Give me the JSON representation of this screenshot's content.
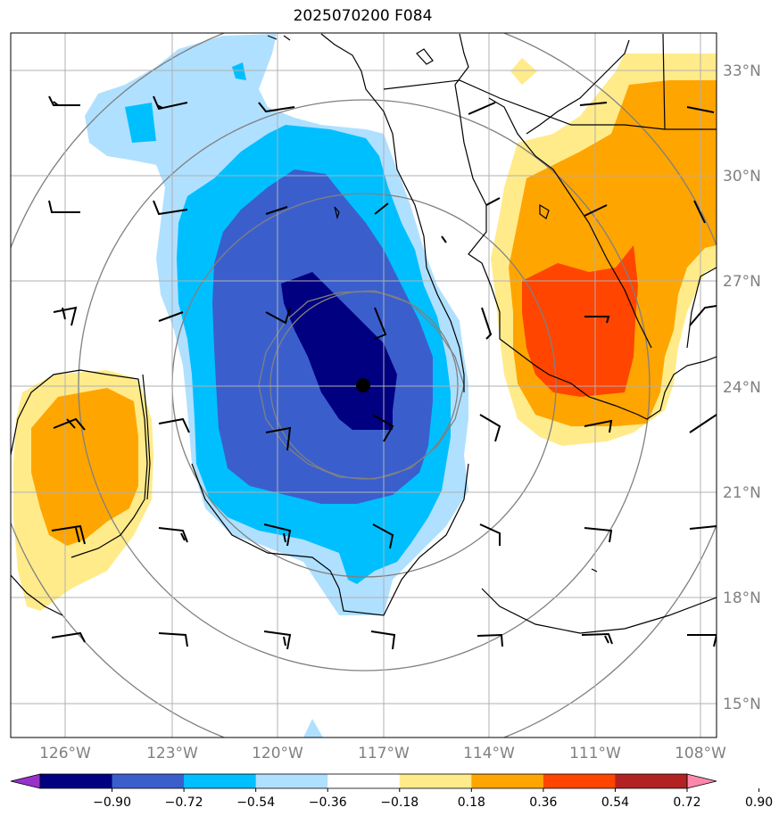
{
  "title": "2025070200 F084",
  "map": {
    "lon_range": [
      -128,
      -107.5
    ],
    "lat_range": [
      14,
      34
    ],
    "lat_ticks": [
      "33°N",
      "30°N",
      "27°N",
      "24°N",
      "21°N",
      "18°N",
      "15°N"
    ],
    "lon_ticks": [
      "126°W",
      "123°W",
      "120°W",
      "117°W",
      "114°W",
      "111°W",
      "108°W"
    ],
    "center_marker": {
      "lon": -117.6,
      "lat": 24.05
    },
    "range_rings": "concentric circles centered on storm",
    "gridlines": true,
    "coastlines": true,
    "wind_barbs": true
  },
  "colorbar": {
    "ticks": [
      "−0.90",
      "−0.72",
      "−0.54",
      "−0.36",
      "−0.18",
      "0.18",
      "0.36",
      "0.54",
      "0.72",
      "0.90"
    ],
    "colors": [
      "#9932cc",
      "#000080",
      "#3a5fcd",
      "#00bfff",
      "#b0e0ff",
      "#ffffff",
      "#ffeb8a",
      "#ffa500",
      "#ff4500",
      "#b22222",
      "#ff88aa"
    ],
    "extend": "both"
  }
}
